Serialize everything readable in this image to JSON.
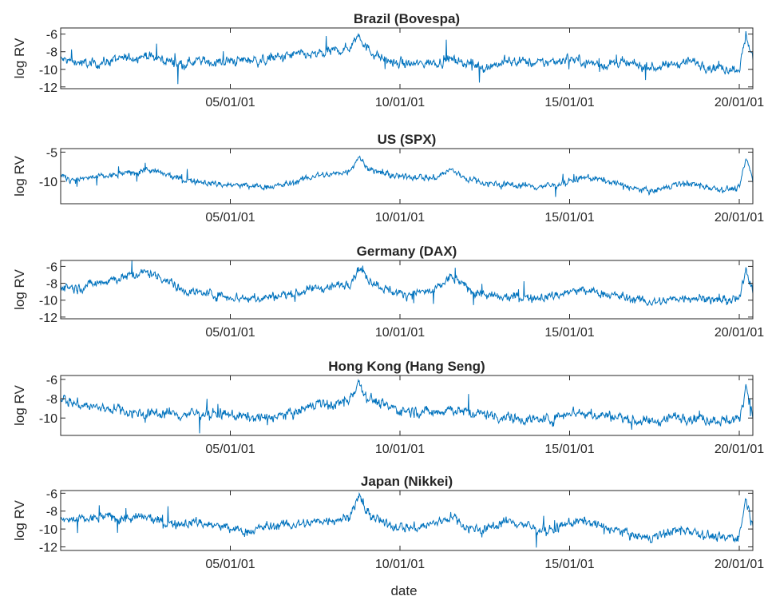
{
  "figure": {
    "xlabel": "date"
  },
  "colors": {
    "line": "#0072BD",
    "axes": "#262626",
    "background": "#ffffff"
  },
  "chart_data": [
    {
      "type": "line",
      "title": "Brazil (Bovespa)",
      "ylabel": "log RV",
      "xlim": [
        2000.0,
        2020.4
      ],
      "ylim": [
        -12.2,
        -5.3
      ],
      "xticks": [
        {
          "v": 2005.0,
          "label": "05/01/01"
        },
        {
          "v": 2010.0,
          "label": "10/01/01"
        },
        {
          "v": 2015.0,
          "label": "15/01/01"
        },
        {
          "v": 2020.0,
          "label": "20/01/01"
        }
      ],
      "yticks": [
        {
          "v": -6,
          "label": "-6"
        },
        {
          "v": -8,
          "label": "-8"
        },
        {
          "v": -10,
          "label": "-10"
        },
        {
          "v": -12,
          "label": "-12"
        }
      ],
      "series": [
        {
          "x": [
            2000.0,
            2000.5,
            2001.0,
            2001.5,
            2002.0,
            2002.5,
            2003.0,
            2003.5,
            2004.0,
            2004.5,
            2005.0,
            2005.5,
            2006.0,
            2006.5,
            2007.0,
            2007.5,
            2008.0,
            2008.5,
            2008.8,
            2009.0,
            2009.5,
            2010.0,
            2010.5,
            2011.0,
            2011.5,
            2012.0,
            2012.5,
            2013.0,
            2013.5,
            2014.0,
            2014.5,
            2015.0,
            2015.5,
            2016.0,
            2016.5,
            2017.0,
            2017.5,
            2018.0,
            2018.5,
            2019.0,
            2019.5,
            2020.0,
            2020.2,
            2020.4
          ],
          "y": [
            -8.9,
            -9.2,
            -9.4,
            -9.0,
            -8.7,
            -8.4,
            -8.9,
            -9.3,
            -9.0,
            -9.2,
            -9.1,
            -8.9,
            -9.0,
            -8.6,
            -8.3,
            -8.4,
            -8.0,
            -7.6,
            -5.9,
            -7.6,
            -8.8,
            -9.4,
            -9.4,
            -9.2,
            -8.8,
            -9.3,
            -9.7,
            -9.3,
            -9.0,
            -9.4,
            -9.1,
            -8.7,
            -9.2,
            -9.5,
            -9.3,
            -9.6,
            -9.8,
            -9.5,
            -9.0,
            -9.6,
            -9.9,
            -9.9,
            -6.1,
            -8.7
          ]
        }
      ]
    },
    {
      "type": "line",
      "title": "US (SPX)",
      "ylabel": "log RV",
      "xlim": [
        2000.0,
        2020.4
      ],
      "ylim": [
        -13.8,
        -4.4
      ],
      "xticks": [
        {
          "v": 2005.0,
          "label": "05/01/01"
        },
        {
          "v": 2010.0,
          "label": "10/01/01"
        },
        {
          "v": 2015.0,
          "label": "15/01/01"
        },
        {
          "v": 2020.0,
          "label": "20/01/01"
        }
      ],
      "yticks": [
        {
          "v": -5,
          "label": "-5"
        },
        {
          "v": -10,
          "label": "-10"
        }
      ],
      "series": [
        {
          "x": [
            2000.0,
            2000.5,
            2001.0,
            2001.5,
            2002.0,
            2002.5,
            2003.0,
            2003.5,
            2004.0,
            2004.5,
            2005.0,
            2005.5,
            2006.0,
            2006.5,
            2007.0,
            2007.5,
            2008.0,
            2008.5,
            2008.8,
            2009.0,
            2009.5,
            2010.0,
            2010.5,
            2011.0,
            2011.5,
            2012.0,
            2012.5,
            2013.0,
            2013.5,
            2014.0,
            2014.5,
            2015.0,
            2015.5,
            2016.0,
            2016.5,
            2017.0,
            2017.5,
            2018.0,
            2018.5,
            2019.0,
            2019.5,
            2020.0,
            2020.2,
            2020.4
          ],
          "y": [
            -9.2,
            -9.7,
            -9.3,
            -9.0,
            -8.6,
            -8.0,
            -8.7,
            -9.6,
            -10.0,
            -10.4,
            -10.6,
            -10.8,
            -10.9,
            -10.7,
            -10.0,
            -9.0,
            -8.8,
            -8.2,
            -5.6,
            -7.6,
            -8.7,
            -9.3,
            -9.1,
            -9.5,
            -8.0,
            -9.6,
            -10.2,
            -10.5,
            -10.6,
            -10.9,
            -10.7,
            -10.0,
            -9.3,
            -9.8,
            -10.5,
            -11.4,
            -11.7,
            -10.7,
            -10.3,
            -10.8,
            -11.3,
            -11.2,
            -6.0,
            -9.8
          ]
        }
      ]
    },
    {
      "type": "line",
      "title": "Germany (DAX)",
      "ylabel": "log RV",
      "xlim": [
        2000.0,
        2020.4
      ],
      "ylim": [
        -12.2,
        -5.3
      ],
      "xticks": [
        {
          "v": 2005.0,
          "label": "05/01/01"
        },
        {
          "v": 2010.0,
          "label": "10/01/01"
        },
        {
          "v": 2015.0,
          "label": "15/01/01"
        },
        {
          "v": 2020.0,
          "label": "20/01/01"
        }
      ],
      "yticks": [
        {
          "v": -6,
          "label": "-6"
        },
        {
          "v": -8,
          "label": "-8"
        },
        {
          "v": -10,
          "label": "-10"
        },
        {
          "v": -12,
          "label": "-12"
        }
      ],
      "series": [
        {
          "x": [
            2000.0,
            2000.5,
            2001.0,
            2001.5,
            2002.0,
            2002.5,
            2003.0,
            2003.5,
            2004.0,
            2004.5,
            2005.0,
            2005.5,
            2006.0,
            2006.5,
            2007.0,
            2007.5,
            2008.0,
            2008.5,
            2008.8,
            2009.0,
            2009.5,
            2010.0,
            2010.5,
            2011.0,
            2011.5,
            2012.0,
            2012.5,
            2013.0,
            2013.5,
            2014.0,
            2014.5,
            2015.0,
            2015.5,
            2016.0,
            2016.5,
            2017.0,
            2017.5,
            2018.0,
            2018.5,
            2019.0,
            2019.5,
            2020.0,
            2020.2,
            2020.4
          ],
          "y": [
            -8.3,
            -8.6,
            -8.0,
            -7.5,
            -7.2,
            -6.7,
            -7.3,
            -8.6,
            -9.1,
            -9.3,
            -9.6,
            -9.8,
            -9.7,
            -9.4,
            -9.1,
            -8.6,
            -8.4,
            -8.0,
            -6.1,
            -7.3,
            -8.5,
            -9.3,
            -9.1,
            -9.0,
            -7.2,
            -8.6,
            -9.4,
            -9.8,
            -9.6,
            -9.8,
            -9.5,
            -9.0,
            -8.9,
            -9.2,
            -9.6,
            -10.0,
            -10.3,
            -9.9,
            -9.6,
            -9.8,
            -10.1,
            -10.0,
            -6.3,
            -8.7
          ]
        }
      ]
    },
    {
      "type": "line",
      "title": "Hong Kong (Hang Seng)",
      "ylabel": "log RV",
      "xlim": [
        2000.0,
        2020.4
      ],
      "ylim": [
        -11.8,
        -5.6
      ],
      "xticks": [
        {
          "v": 2005.0,
          "label": "05/01/01"
        },
        {
          "v": 2010.0,
          "label": "10/01/01"
        },
        {
          "v": 2015.0,
          "label": "15/01/01"
        },
        {
          "v": 2020.0,
          "label": "20/01/01"
        }
      ],
      "yticks": [
        {
          "v": -6,
          "label": "-6"
        },
        {
          "v": -8,
          "label": "-8"
        },
        {
          "v": -10,
          "label": "-10"
        }
      ],
      "series": [
        {
          "x": [
            2000.0,
            2000.5,
            2001.0,
            2001.5,
            2002.0,
            2002.5,
            2003.0,
            2003.5,
            2004.0,
            2004.5,
            2005.0,
            2005.5,
            2006.0,
            2006.5,
            2007.0,
            2007.5,
            2008.0,
            2008.5,
            2008.8,
            2009.0,
            2009.5,
            2010.0,
            2010.5,
            2011.0,
            2011.5,
            2012.0,
            2012.5,
            2013.0,
            2013.5,
            2014.0,
            2014.5,
            2015.0,
            2015.5,
            2016.0,
            2016.5,
            2017.0,
            2017.5,
            2018.0,
            2018.5,
            2019.0,
            2019.5,
            2020.0,
            2020.2,
            2020.4
          ],
          "y": [
            -7.9,
            -8.6,
            -8.9,
            -9.0,
            -9.3,
            -9.6,
            -9.4,
            -9.7,
            -9.5,
            -9.6,
            -9.7,
            -9.9,
            -10.0,
            -9.8,
            -9.4,
            -8.5,
            -8.7,
            -8.0,
            -6.2,
            -7.7,
            -8.7,
            -9.2,
            -9.3,
            -9.4,
            -9.0,
            -9.5,
            -9.6,
            -9.9,
            -10.0,
            -10.2,
            -10.1,
            -9.3,
            -9.6,
            -9.7,
            -9.9,
            -10.3,
            -10.4,
            -9.9,
            -9.9,
            -10.1,
            -10.2,
            -10.2,
            -6.5,
            -9.8
          ]
        }
      ]
    },
    {
      "type": "line",
      "title": "Japan (Nikkei)",
      "ylabel": "log RV",
      "xlim": [
        2000.0,
        2020.4
      ],
      "ylim": [
        -12.4,
        -5.7
      ],
      "xticks": [
        {
          "v": 2005.0,
          "label": "05/01/01"
        },
        {
          "v": 2010.0,
          "label": "10/01/01"
        },
        {
          "v": 2015.0,
          "label": "15/01/01"
        },
        {
          "v": 2020.0,
          "label": "20/01/01"
        }
      ],
      "yticks": [
        {
          "v": -6,
          "label": "-6"
        },
        {
          "v": -8,
          "label": "-8"
        },
        {
          "v": -10,
          "label": "-10"
        },
        {
          "v": -12,
          "label": "-12"
        }
      ],
      "series": [
        {
          "x": [
            2000.0,
            2000.5,
            2001.0,
            2001.5,
            2002.0,
            2002.5,
            2003.0,
            2003.5,
            2004.0,
            2004.5,
            2005.0,
            2005.5,
            2006.0,
            2006.5,
            2007.0,
            2007.5,
            2008.0,
            2008.5,
            2008.8,
            2009.0,
            2009.5,
            2010.0,
            2010.5,
            2011.0,
            2011.5,
            2012.0,
            2012.5,
            2013.0,
            2013.5,
            2014.0,
            2014.5,
            2015.0,
            2015.5,
            2016.0,
            2016.5,
            2017.0,
            2017.5,
            2018.0,
            2018.5,
            2019.0,
            2019.5,
            2020.0,
            2020.2,
            2020.4
          ],
          "y": [
            -9.1,
            -9.0,
            -8.8,
            -8.6,
            -8.9,
            -8.7,
            -9.3,
            -9.5,
            -9.2,
            -9.6,
            -10.0,
            -10.3,
            -9.8,
            -9.6,
            -9.5,
            -9.2,
            -8.9,
            -8.7,
            -6.2,
            -8.2,
            -9.4,
            -9.7,
            -9.9,
            -9.4,
            -8.6,
            -9.8,
            -10.1,
            -9.2,
            -9.3,
            -10.0,
            -10.2,
            -9.3,
            -9.1,
            -9.8,
            -10.3,
            -10.9,
            -11.0,
            -10.2,
            -10.0,
            -10.6,
            -11.1,
            -10.8,
            -6.5,
            -9.9
          ]
        }
      ]
    }
  ]
}
